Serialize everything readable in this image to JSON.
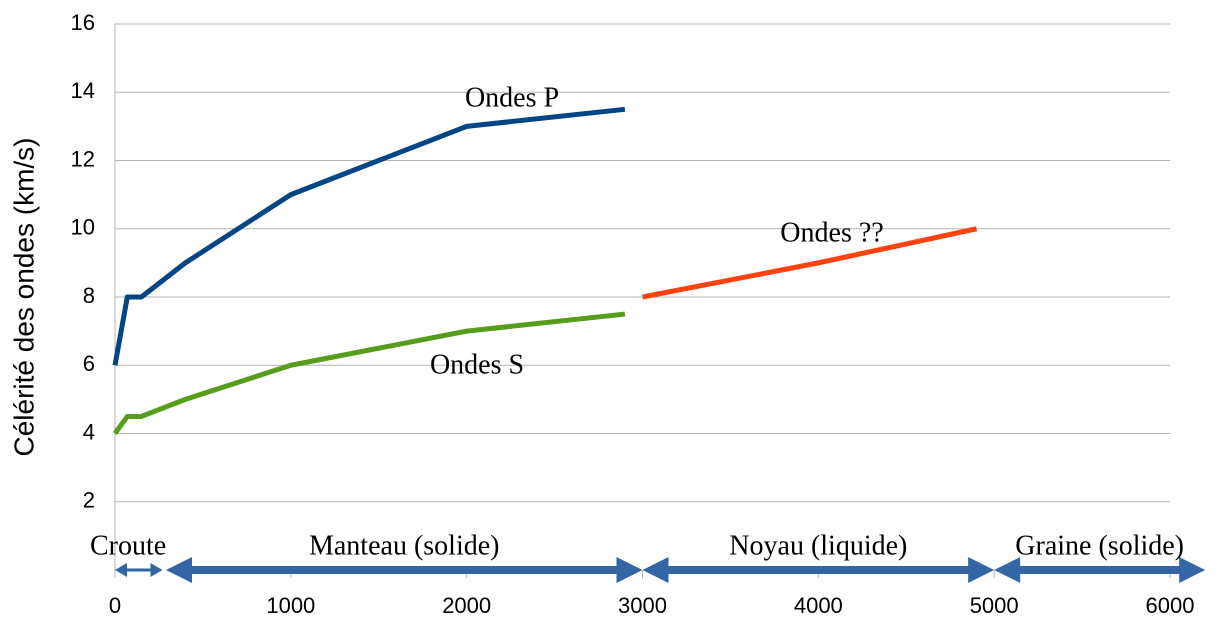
{
  "chart_data": {
    "type": "line",
    "y_label": "Célérité des ondes (km/s)",
    "xlim": [
      0,
      6000
    ],
    "xticks": [
      0,
      1000,
      2000,
      3000,
      4000,
      5000,
      6000
    ],
    "ylim": [
      0,
      16
    ],
    "yticks": [
      2,
      4,
      6,
      8,
      10,
      12,
      14,
      16
    ],
    "grid": true,
    "series": [
      {
        "name": "Ondes P",
        "color": "#004586",
        "x": [
          0,
          70,
          150,
          400,
          1000,
          2000,
          2900
        ],
        "values": [
          6,
          8,
          8,
          9,
          11,
          13,
          13.5
        ]
      },
      {
        "name": "Ondes S",
        "color": "#579d1c",
        "x": [
          0,
          70,
          150,
          400,
          1000,
          2000,
          2900
        ],
        "values": [
          4,
          4.5,
          4.5,
          5,
          6,
          7,
          7.5
        ]
      },
      {
        "name": "Ondes ??",
        "color": "#ff420e",
        "x": [
          3000,
          4000,
          4900
        ],
        "values": [
          8,
          9,
          10
        ]
      }
    ],
    "zones": [
      {
        "label": "Croute",
        "from": 0,
        "to": 270
      },
      {
        "label": "Manteau (solide)",
        "from": 290,
        "to": 3000
      },
      {
        "label": "Noyau (liquide)",
        "from": 3000,
        "to": 5000
      },
      {
        "label": "Graine (solide)",
        "from": 5000,
        "to": 6200
      }
    ]
  }
}
